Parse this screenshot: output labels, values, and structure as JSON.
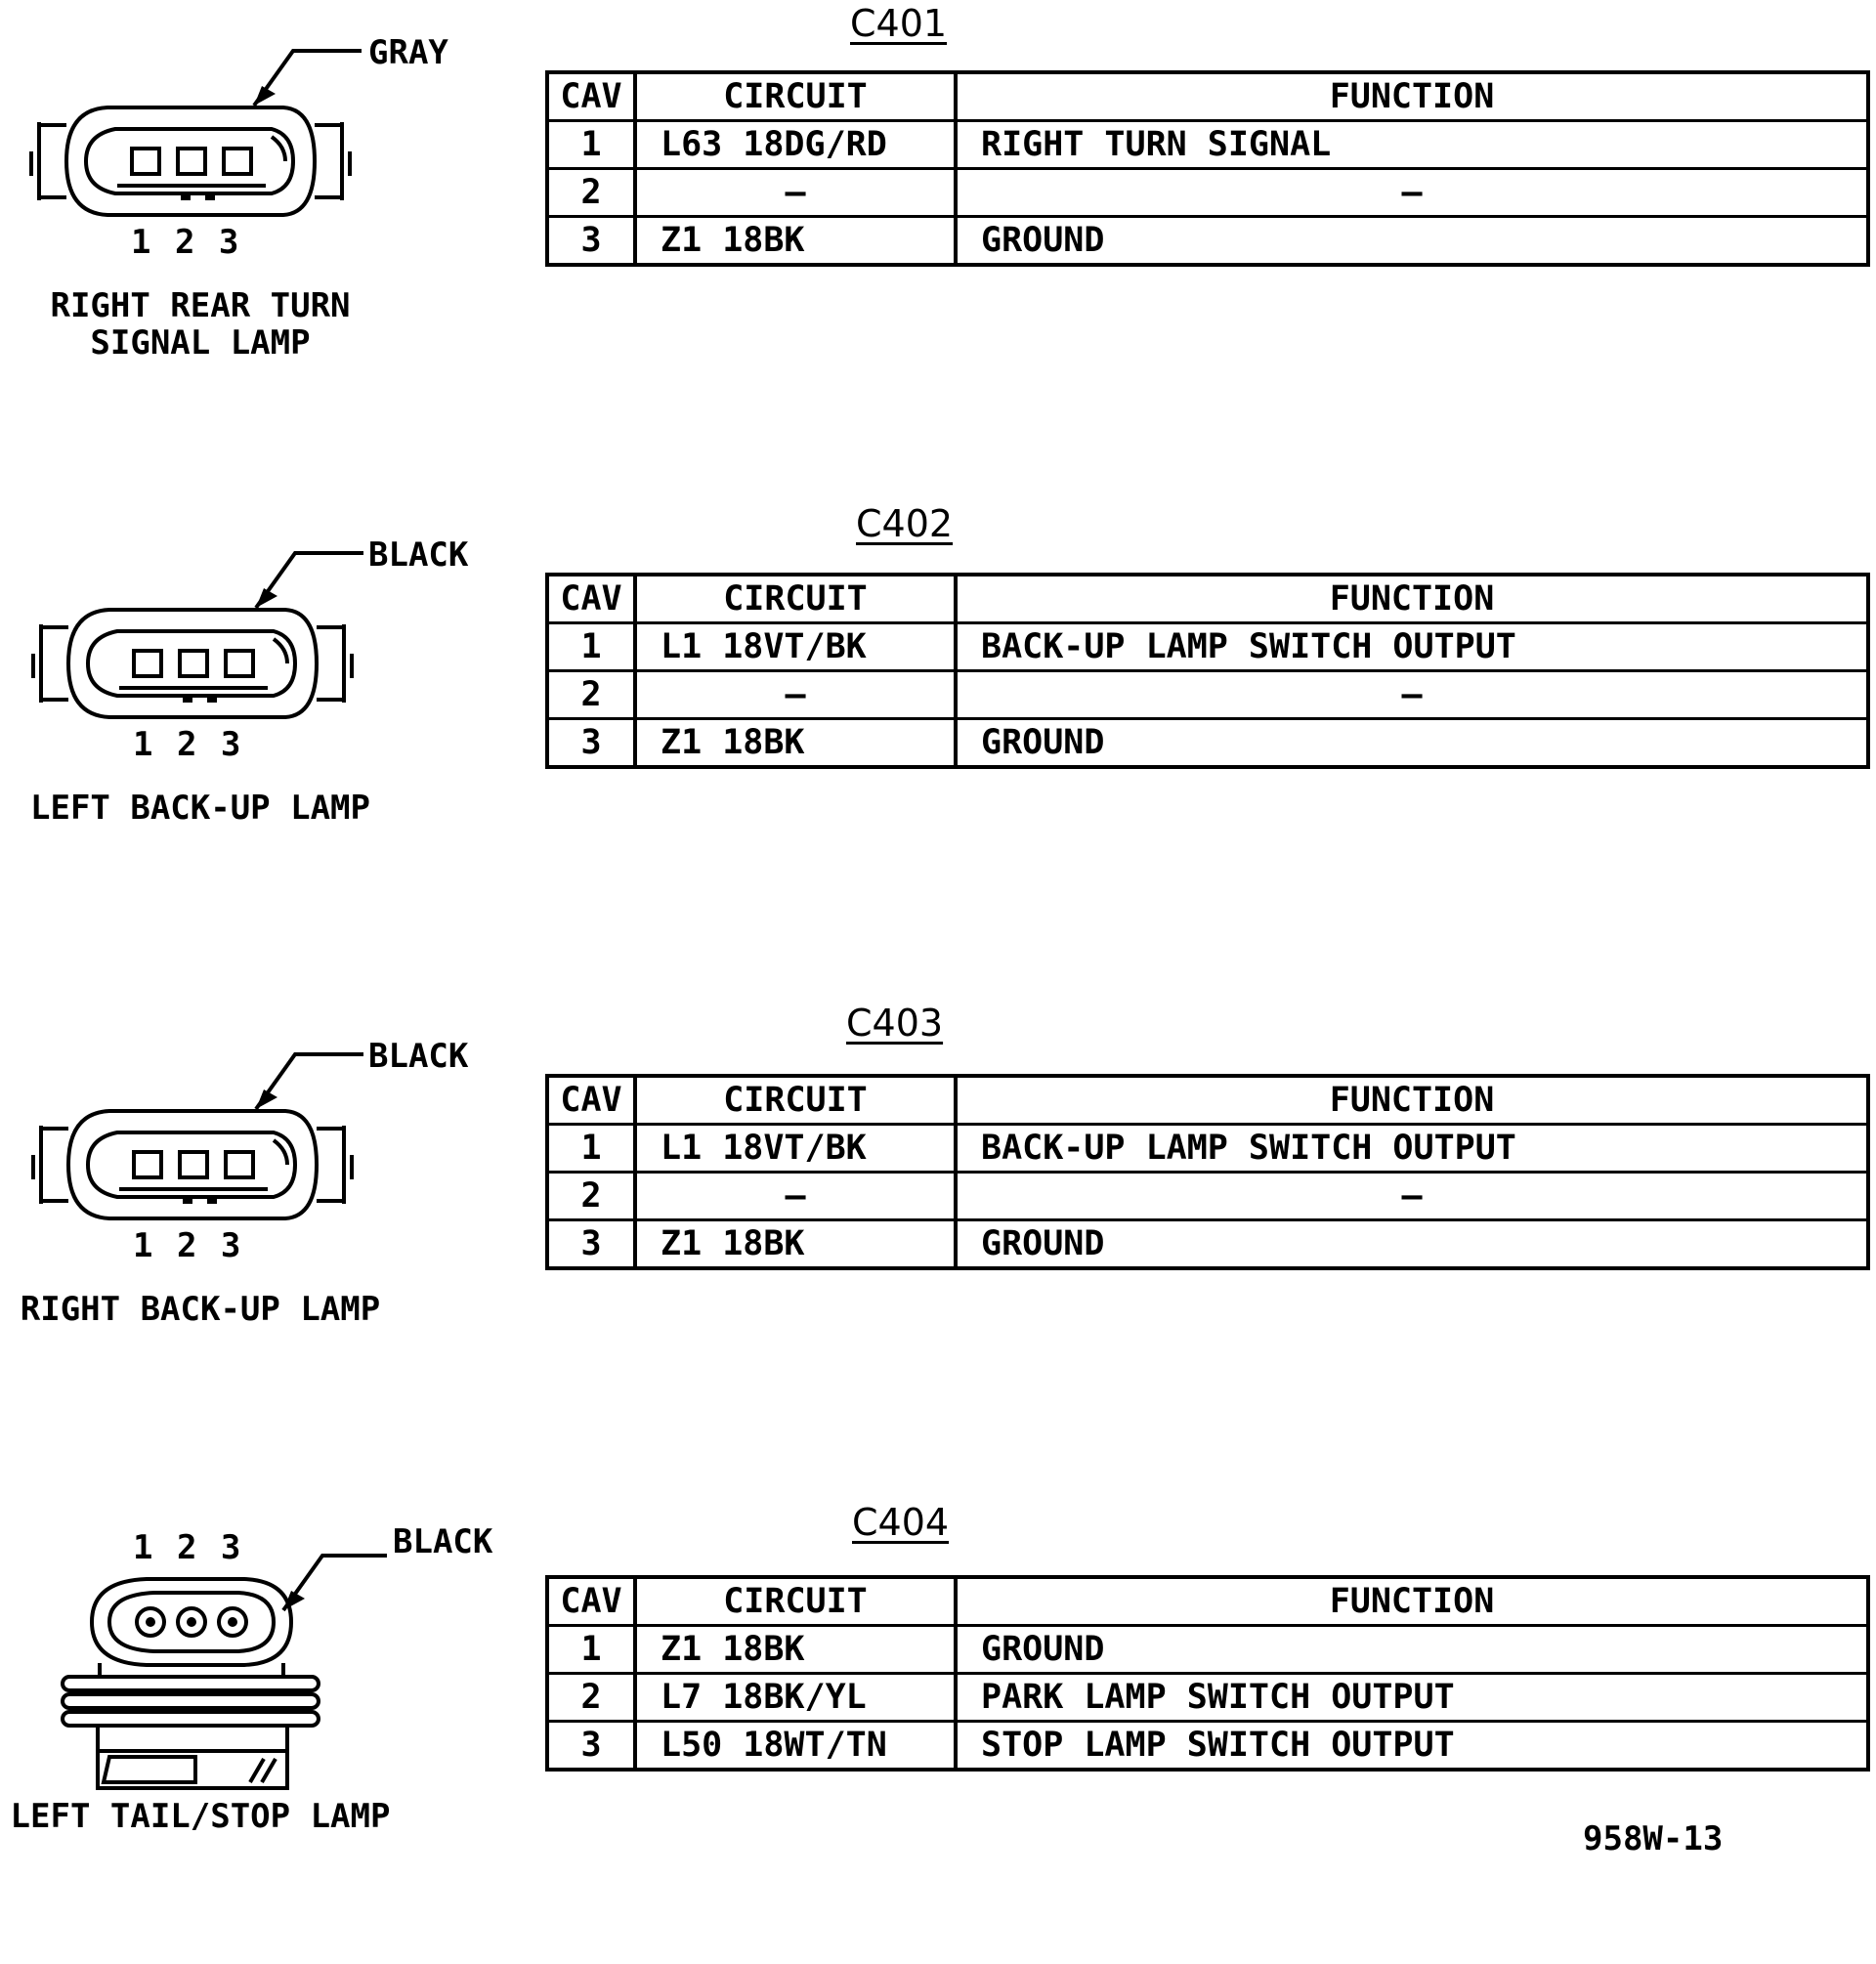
{
  "figure_id": "958W-13",
  "header": {
    "cav": "CAV",
    "circuit": "CIRCUIT",
    "function": "FUNCTION"
  },
  "connectors": [
    {
      "id": "C401",
      "color": "GRAY",
      "pins": "1 2 3",
      "label": "RIGHT REAR TURN\nSIGNAL LAMP",
      "rows": [
        {
          "cav": "1",
          "circuit": "L63 18DG/RD",
          "function": "RIGHT TURN SIGNAL"
        },
        {
          "cav": "2",
          "circuit": "–",
          "function": "–"
        },
        {
          "cav": "3",
          "circuit": "Z1 18BK",
          "function": "GROUND"
        }
      ]
    },
    {
      "id": "C402",
      "color": "BLACK",
      "pins": "1 2 3",
      "label": "LEFT BACK-UP LAMP",
      "rows": [
        {
          "cav": "1",
          "circuit": "L1 18VT/BK",
          "function": "BACK-UP LAMP SWITCH OUTPUT"
        },
        {
          "cav": "2",
          "circuit": "–",
          "function": "–"
        },
        {
          "cav": "3",
          "circuit": "Z1 18BK",
          "function": "GROUND"
        }
      ]
    },
    {
      "id": "C403",
      "color": "BLACK",
      "pins": "1 2 3",
      "label": "RIGHT BACK-UP LAMP",
      "rows": [
        {
          "cav": "1",
          "circuit": "L1 18VT/BK",
          "function": "BACK-UP LAMP SWITCH OUTPUT"
        },
        {
          "cav": "2",
          "circuit": "–",
          "function": "–"
        },
        {
          "cav": "3",
          "circuit": "Z1 18BK",
          "function": "GROUND"
        }
      ]
    },
    {
      "id": "C404",
      "color": "BLACK",
      "pins": "1 2 3",
      "label": "LEFT TAIL/STOP LAMP",
      "rows": [
        {
          "cav": "1",
          "circuit": "Z1 18BK",
          "function": "GROUND"
        },
        {
          "cav": "2",
          "circuit": "L7 18BK/YL",
          "function": "PARK LAMP SWITCH OUTPUT"
        },
        {
          "cav": "3",
          "circuit": "L50 18WT/TN",
          "function": "STOP LAMP SWITCH OUTPUT"
        }
      ]
    }
  ]
}
